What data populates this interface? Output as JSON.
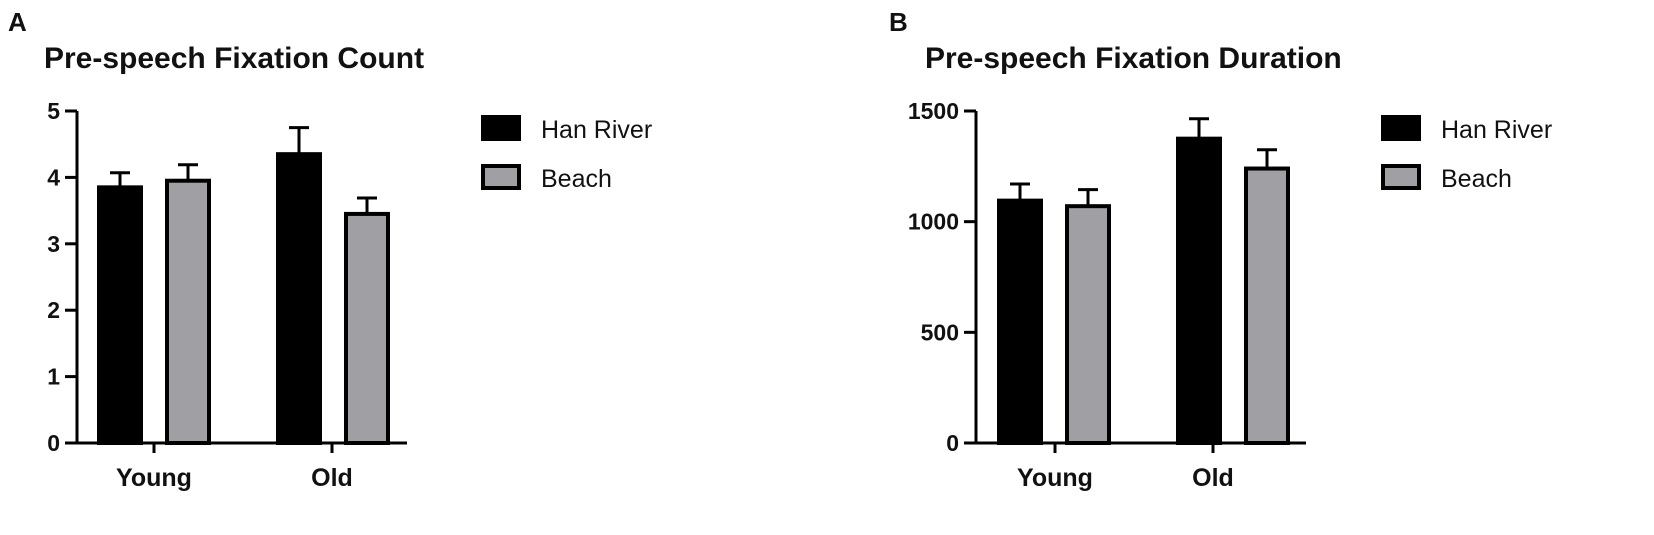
{
  "panels": [
    {
      "letter": "A"
    },
    {
      "letter": "B"
    }
  ],
  "chart_data": [
    {
      "type": "bar",
      "title": "Pre-speech Fixation Count",
      "xlabel": "",
      "ylabel": "",
      "categories": [
        "Young",
        "Old"
      ],
      "ylim": [
        0,
        5
      ],
      "yticks": [
        "0",
        "1",
        "2",
        "3",
        "4",
        "5"
      ],
      "grid": false,
      "legend_position": "right",
      "series": [
        {
          "name": "Han River",
          "color": "#000000",
          "values": [
            3.85,
            4.35
          ],
          "errors": [
            0.22,
            0.4
          ]
        },
        {
          "name": "Beach",
          "color": "#a0a0a4",
          "values": [
            3.95,
            3.45
          ],
          "errors": [
            0.24,
            0.24
          ]
        }
      ]
    },
    {
      "type": "bar",
      "title": "Pre-speech Fixation Duration",
      "xlabel": "",
      "ylabel": "",
      "categories": [
        "Young",
        "Old"
      ],
      "ylim": [
        0,
        1500
      ],
      "yticks": [
        "0",
        "500",
        "1000",
        "1500"
      ],
      "grid": false,
      "legend_position": "right",
      "series": [
        {
          "name": "Han River",
          "color": "#000000",
          "values": [
            1095,
            1375
          ],
          "errors": [
            75,
            90
          ]
        },
        {
          "name": "Beach",
          "color": "#a0a0a4",
          "values": [
            1070,
            1240
          ],
          "errors": [
            75,
            85
          ]
        }
      ]
    }
  ]
}
